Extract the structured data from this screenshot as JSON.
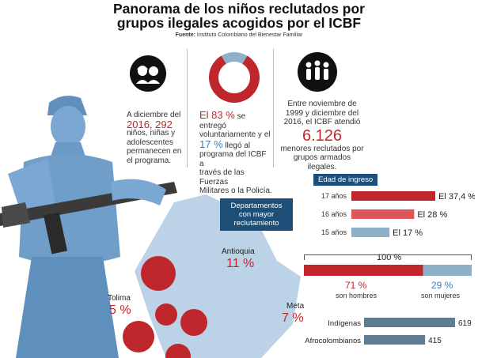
{
  "header": {
    "title_line1": "Panorama de los niños reclutados por",
    "title_line2": "grupos ilegales acogidos por el ICBF",
    "source_label": "Fuente:",
    "source_text": "Instituto Colombiano del Bienestar Familiar"
  },
  "panel1": {
    "icon": "children-icon",
    "l1": "A diciembre del",
    "l2a": "2016, 292",
    "l3": "niños, niñas y",
    "l4": "adolescentes",
    "l5": "permanecen en",
    "l6": "el programa."
  },
  "panel2": {
    "pct1": "El 83 %",
    "l1b": "se entregó",
    "l2": "voluntariamente y el",
    "pct2": "17 %",
    "l3b": "llegó al",
    "l4": "programa del ICBF a",
    "l5": "través de las Fuerzas",
    "l6": "Militares o la Policía."
  },
  "panel3": {
    "icon": "group-icon",
    "l1": "Entre noviembre de",
    "l2": "1999 y diciembre del",
    "l3": "2016, el ICBF atendió",
    "big": "6.126",
    "l4": "menores reclutados por",
    "l5": "grupos armados ilegales."
  },
  "colors": {
    "red": "#c0272d",
    "coral": "#e0555a",
    "steel": "#8fb0c9",
    "navy": "#1d4f78",
    "slate": "#5f7d92",
    "figure": "#6f9ec9"
  },
  "map": {
    "title_l1": "Departamentos",
    "title_l2": "con mayor",
    "title_l3": "reclutamiento",
    "depts": [
      {
        "name": "Antioquia",
        "pct": "11 %"
      },
      {
        "name": "Tolima",
        "pct": "5 %"
      },
      {
        "name": "Meta",
        "pct": "7 %"
      }
    ]
  },
  "chart_data": [
    {
      "type": "pie",
      "slices": [
        {
          "label": "se entregó voluntariamente",
          "value": 83
        },
        {
          "label": "a través de las Fuerzas Militares o la Policía",
          "value": 17
        }
      ]
    },
    {
      "type": "bar",
      "title": "Edad de ingreso",
      "categories": [
        "17 años",
        "16 años",
        "15 años"
      ],
      "values": [
        37.4,
        28,
        17
      ],
      "value_labels": [
        "El 37,4 %",
        "El 28 %",
        "El 17 %"
      ],
      "xlim": [
        0,
        37.4
      ]
    },
    {
      "type": "bar",
      "title": "100 %",
      "categories": [
        "son hombres",
        "son mujeres"
      ],
      "values": [
        71,
        29
      ],
      "value_labels": [
        "71 %",
        "29 %"
      ]
    },
    {
      "type": "bar",
      "categories": [
        "Indígenas",
        "Afrocolombianos"
      ],
      "values": [
        619,
        415
      ],
      "value_labels": [
        "619",
        "415"
      ]
    }
  ]
}
